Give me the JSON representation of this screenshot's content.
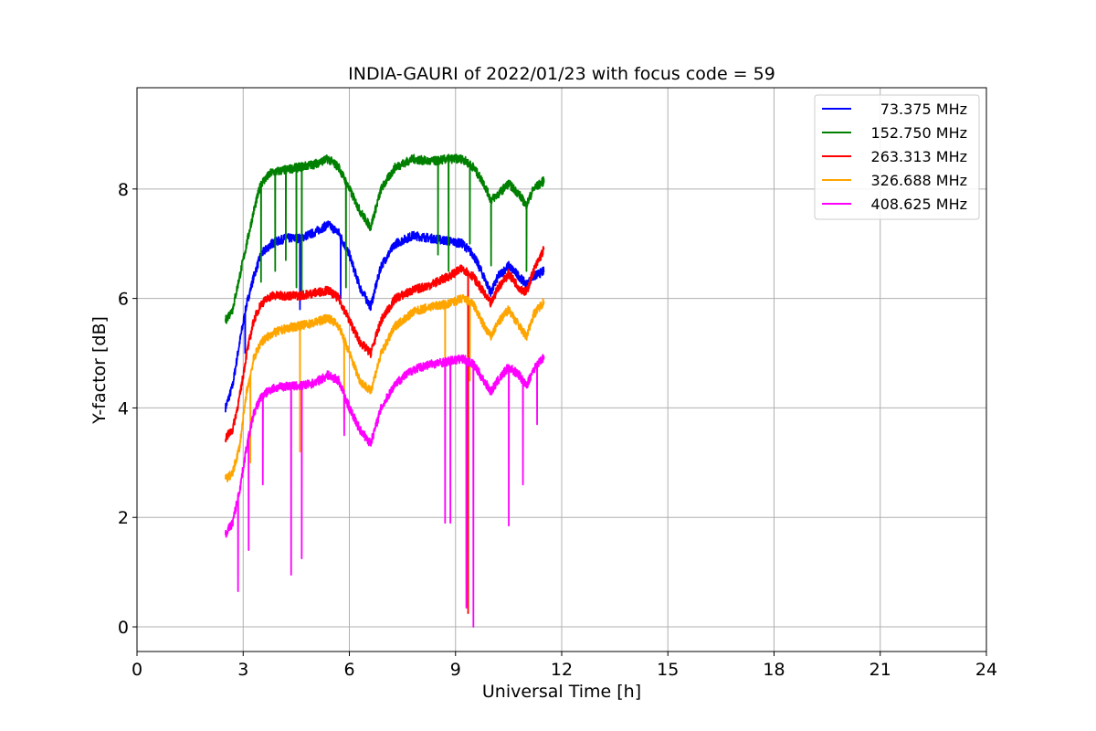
{
  "chart_data": {
    "type": "line",
    "title": "INDIA-GAURI of 2022/01/23 with focus code = 59",
    "xlabel": "Universal Time [h]",
    "ylabel": "Y-factor [dB]",
    "xlim": [
      0,
      24
    ],
    "ylim": [
      -0.45,
      9.85
    ],
    "xticks": [
      0,
      3,
      6,
      9,
      12,
      15,
      18,
      21,
      24
    ],
    "yticks": [
      0,
      2,
      4,
      6,
      8
    ],
    "grid": true,
    "legend_position": "top-right",
    "series": [
      {
        "name": "73.375 MHz",
        "color": "#0000ff",
        "x": [
          2.5,
          2.7,
          2.9,
          3.1,
          3.3,
          3.5,
          3.8,
          4.2,
          4.6,
          5.0,
          5.4,
          5.7,
          6.0,
          6.3,
          6.6,
          6.9,
          7.3,
          7.8,
          8.3,
          8.8,
          9.2,
          9.5,
          9.8,
          10.0,
          10.2,
          10.5,
          10.8,
          11.0,
          11.2,
          11.5
        ],
        "y": [
          4.0,
          4.4,
          5.2,
          5.9,
          6.4,
          6.8,
          7.0,
          7.1,
          7.1,
          7.2,
          7.35,
          7.2,
          6.8,
          6.2,
          5.85,
          6.6,
          7.0,
          7.15,
          7.1,
          7.05,
          7.0,
          6.8,
          6.4,
          6.1,
          6.4,
          6.6,
          6.4,
          6.25,
          6.4,
          6.5
        ],
        "dips": [
          [
            4.6,
            5.8
          ],
          [
            5.75,
            6.0
          ],
          [
            3.05,
            5.0
          ]
        ]
      },
      {
        "name": "152.750 MHz",
        "color": "#008000",
        "x": [
          2.5,
          2.7,
          2.9,
          3.1,
          3.3,
          3.5,
          3.8,
          4.2,
          4.6,
          5.0,
          5.4,
          5.7,
          6.0,
          6.3,
          6.6,
          6.9,
          7.3,
          7.8,
          8.3,
          8.8,
          9.2,
          9.5,
          9.8,
          10.0,
          10.2,
          10.5,
          10.8,
          11.0,
          11.2,
          11.5
        ],
        "y": [
          5.6,
          5.8,
          6.4,
          7.0,
          7.6,
          8.1,
          8.3,
          8.35,
          8.4,
          8.45,
          8.55,
          8.4,
          8.0,
          7.6,
          7.3,
          8.0,
          8.4,
          8.55,
          8.5,
          8.55,
          8.55,
          8.4,
          8.1,
          7.8,
          7.9,
          8.1,
          7.9,
          7.7,
          8.0,
          8.15
        ],
        "dips": [
          [
            3.5,
            6.3
          ],
          [
            3.9,
            6.5
          ],
          [
            4.2,
            6.7
          ],
          [
            4.5,
            6.2
          ],
          [
            4.65,
            6.0
          ],
          [
            5.9,
            6.2
          ],
          [
            8.5,
            6.8
          ],
          [
            8.8,
            6.5
          ],
          [
            9.4,
            7.0
          ],
          [
            10.0,
            6.6
          ],
          [
            11.0,
            6.5
          ]
        ]
      },
      {
        "name": "263.313 MHz",
        "color": "#ff0000",
        "x": [
          2.5,
          2.7,
          2.9,
          3.1,
          3.3,
          3.5,
          3.8,
          4.2,
          4.6,
          5.0,
          5.4,
          5.7,
          6.0,
          6.3,
          6.6,
          6.9,
          7.3,
          7.8,
          8.3,
          8.8,
          9.2,
          9.5,
          9.8,
          10.0,
          10.2,
          10.5,
          10.8,
          11.0,
          11.2,
          11.5
        ],
        "y": [
          3.45,
          3.6,
          4.2,
          5.0,
          5.6,
          5.9,
          6.05,
          6.05,
          6.05,
          6.1,
          6.15,
          6.0,
          5.6,
          5.2,
          5.0,
          5.6,
          6.0,
          6.15,
          6.25,
          6.4,
          6.55,
          6.4,
          6.1,
          5.9,
          6.2,
          6.45,
          6.2,
          6.1,
          6.5,
          6.9
        ],
        "dips": [
          [
            9.35,
            0.25
          ]
        ]
      },
      {
        "name": "326.688 MHz",
        "color": "#ffa500",
        "x": [
          2.5,
          2.7,
          2.9,
          3.1,
          3.3,
          3.5,
          3.8,
          4.2,
          4.6,
          5.0,
          5.4,
          5.7,
          6.0,
          6.3,
          6.6,
          6.9,
          7.3,
          7.8,
          8.3,
          8.8,
          9.2,
          9.5,
          9.8,
          10.0,
          10.2,
          10.5,
          10.8,
          11.0,
          11.2,
          11.5
        ],
        "y": [
          2.7,
          2.8,
          3.3,
          4.3,
          4.9,
          5.2,
          5.35,
          5.45,
          5.5,
          5.55,
          5.65,
          5.5,
          5.0,
          4.5,
          4.3,
          5.0,
          5.5,
          5.75,
          5.85,
          5.9,
          6.0,
          5.9,
          5.5,
          5.3,
          5.55,
          5.8,
          5.5,
          5.3,
          5.7,
          5.95
        ],
        "dips": [
          [
            3.2,
            3.0
          ],
          [
            4.6,
            3.2
          ],
          [
            5.85,
            3.8
          ],
          [
            8.7,
            4.0
          ],
          [
            9.4,
            4.5
          ]
        ]
      },
      {
        "name": "408.625 MHz",
        "color": "#ff00ff",
        "x": [
          2.5,
          2.7,
          2.9,
          3.1,
          3.3,
          3.5,
          3.8,
          4.2,
          4.6,
          5.0,
          5.4,
          5.7,
          6.0,
          6.3,
          6.6,
          6.9,
          7.3,
          7.8,
          8.3,
          8.8,
          9.2,
          9.5,
          9.8,
          10.0,
          10.2,
          10.5,
          10.8,
          11.0,
          11.2,
          11.5
        ],
        "y": [
          1.7,
          1.9,
          2.5,
          3.3,
          3.9,
          4.2,
          4.35,
          4.4,
          4.4,
          4.45,
          4.6,
          4.5,
          4.0,
          3.6,
          3.35,
          4.0,
          4.45,
          4.7,
          4.8,
          4.85,
          4.9,
          4.8,
          4.5,
          4.3,
          4.5,
          4.75,
          4.6,
          4.4,
          4.7,
          4.95
        ],
        "dips": [
          [
            2.85,
            0.65
          ],
          [
            3.15,
            1.4
          ],
          [
            3.55,
            2.6
          ],
          [
            4.35,
            0.95
          ],
          [
            4.65,
            1.25
          ],
          [
            5.85,
            3.5
          ],
          [
            8.7,
            1.9
          ],
          [
            8.85,
            1.9
          ],
          [
            9.3,
            0.35
          ],
          [
            9.5,
            0.0
          ],
          [
            10.5,
            1.85
          ],
          [
            10.9,
            2.6
          ],
          [
            11.3,
            3.7
          ]
        ]
      }
    ]
  }
}
